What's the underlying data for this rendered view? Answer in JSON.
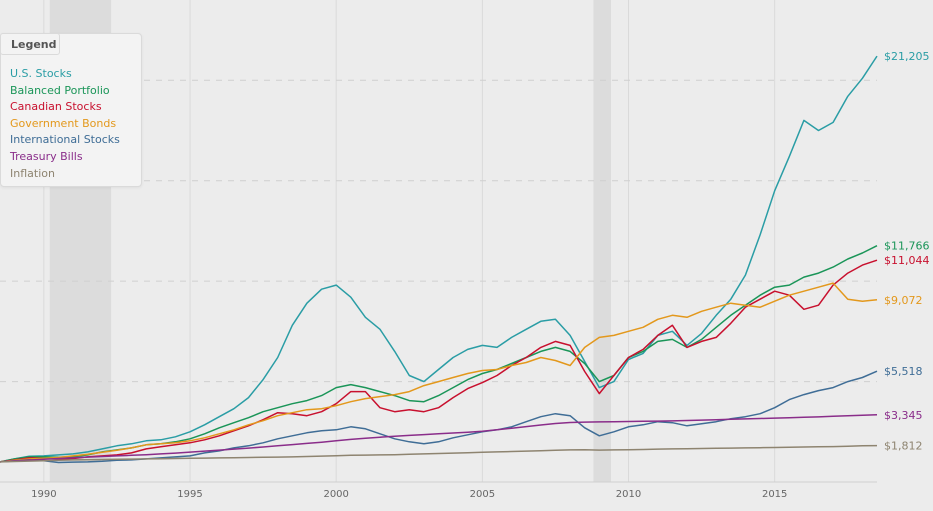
{
  "chart_data": {
    "type": "line",
    "legend": {
      "title": "Legend",
      "placement": "top-left"
    },
    "x": [
      1988.5,
      1989,
      1989.5,
      1990,
      1990.5,
      1991,
      1991.5,
      1992,
      1992.5,
      1993,
      1993.5,
      1994,
      1994.5,
      1995,
      1995.5,
      1996,
      1996.5,
      1997,
      1997.5,
      1998,
      1998.5,
      1999,
      1999.5,
      2000,
      2000.5,
      2001,
      2001.5,
      2002,
      2002.5,
      2003,
      2003.5,
      2004,
      2004.5,
      2005,
      2005.5,
      2006,
      2006.5,
      2007,
      2007.5,
      2008,
      2008.5,
      2009,
      2009.5,
      2010,
      2010.5,
      2011,
      2011.5,
      2012,
      2012.5,
      2013,
      2013.5,
      2014,
      2014.5,
      2015,
      2015.5,
      2016,
      2016.5,
      2017,
      2017.5,
      2018,
      2018.5
    ],
    "xlim": [
      1988.5,
      2018.5
    ],
    "ylim": [
      0,
      23000
    ],
    "grid": true,
    "x_ticks": [
      "1990",
      "1995",
      "2000",
      "2005",
      "2010",
      "2015"
    ],
    "recession_shading": [
      [
        1990.2,
        1992.3
      ],
      [
        2008.8,
        2009.4
      ]
    ],
    "series": [
      {
        "name": "U.S. Stocks",
        "color": "#2a9da5",
        "end_label": "$21,205",
        "values": [
          1000,
          1150,
          1280,
          1300,
          1350,
          1400,
          1500,
          1650,
          1800,
          1900,
          2050,
          2100,
          2250,
          2500,
          2850,
          3250,
          3650,
          4200,
          5100,
          6200,
          7800,
          8900,
          9600,
          9800,
          9200,
          8200,
          7600,
          6500,
          5300,
          5000,
          5600,
          6200,
          6600,
          6800,
          6700,
          7200,
          7600,
          8000,
          8100,
          7300,
          6000,
          4700,
          5000,
          6100,
          6400,
          7300,
          7500,
          6800,
          7400,
          8300,
          9100,
          10300,
          12300,
          14500,
          16200,
          18000,
          17500,
          17900,
          19200,
          20100,
          21205
        ]
      },
      {
        "name": "Balanced Portfolio",
        "color": "#1a9558",
        "end_label": "$11,766",
        "values": [
          1000,
          1150,
          1250,
          1250,
          1230,
          1260,
          1350,
          1500,
          1600,
          1700,
          1850,
          1900,
          2000,
          2150,
          2400,
          2700,
          2950,
          3200,
          3500,
          3700,
          3900,
          4050,
          4300,
          4700,
          4850,
          4700,
          4500,
          4300,
          4050,
          4000,
          4300,
          4700,
          5100,
          5400,
          5600,
          5900,
          6200,
          6500,
          6700,
          6500,
          5900,
          5000,
          5300,
          6200,
          6500,
          7000,
          7100,
          6700,
          7100,
          7700,
          8300,
          8800,
          9300,
          9700,
          9800,
          10200,
          10400,
          10700,
          11100,
          11400,
          11766
        ]
      },
      {
        "name": "Canadian Stocks",
        "color": "#c8102e",
        "end_label": "$11,044",
        "values": [
          1000,
          1100,
          1200,
          1180,
          1130,
          1170,
          1250,
          1300,
          1350,
          1450,
          1650,
          1750,
          1850,
          1950,
          2100,
          2300,
          2550,
          2800,
          3100,
          3450,
          3400,
          3300,
          3500,
          3900,
          4500,
          4500,
          3700,
          3500,
          3600,
          3500,
          3700,
          4200,
          4650,
          4950,
          5300,
          5800,
          6200,
          6700,
          7000,
          6800,
          5500,
          4400,
          5300,
          6200,
          6600,
          7300,
          7800,
          6700,
          7000,
          7200,
          7900,
          8700,
          9100,
          9500,
          9300,
          8600,
          8800,
          9800,
          10400,
          10800,
          11044
        ]
      },
      {
        "name": "Government Bonds",
        "color": "#e3981c",
        "end_label": "$9,072",
        "values": [
          1000,
          1080,
          1150,
          1180,
          1220,
          1300,
          1380,
          1480,
          1580,
          1700,
          1850,
          1900,
          1950,
          2050,
          2200,
          2400,
          2600,
          2850,
          3050,
          3300,
          3450,
          3600,
          3650,
          3800,
          4000,
          4150,
          4250,
          4350,
          4500,
          4800,
          5000,
          5200,
          5400,
          5550,
          5600,
          5800,
          5950,
          6200,
          6050,
          5800,
          6700,
          7200,
          7300,
          7500,
          7700,
          8100,
          8300,
          8200,
          8500,
          8700,
          8900,
          8800,
          8700,
          9000,
          9300,
          9500,
          9700,
          9900,
          9100,
          9000,
          9072
        ]
      },
      {
        "name": "International Stocks",
        "color": "#3f6d96",
        "end_label": "$5,518",
        "values": [
          1000,
          1050,
          1100,
          1060,
          970,
          990,
          1000,
          1030,
          1080,
          1100,
          1150,
          1200,
          1250,
          1300,
          1450,
          1550,
          1700,
          1800,
          1950,
          2150,
          2300,
          2450,
          2550,
          2600,
          2750,
          2650,
          2400,
          2150,
          2000,
          1900,
          2000,
          2200,
          2350,
          2500,
          2600,
          2750,
          3000,
          3250,
          3400,
          3300,
          2700,
          2300,
          2500,
          2750,
          2850,
          3000,
          2950,
          2800,
          2900,
          3000,
          3150,
          3250,
          3400,
          3700,
          4100,
          4350,
          4550,
          4700,
          5000,
          5200,
          5518
        ]
      },
      {
        "name": "Treasury Bills",
        "color": "#8a2d8a",
        "end_label": "$3,345",
        "values": [
          1000,
          1050,
          1090,
          1130,
          1170,
          1210,
          1240,
          1270,
          1300,
          1330,
          1360,
          1400,
          1440,
          1490,
          1540,
          1590,
          1640,
          1690,
          1740,
          1800,
          1860,
          1920,
          1980,
          2050,
          2120,
          2180,
          2230,
          2280,
          2320,
          2360,
          2400,
          2440,
          2480,
          2530,
          2600,
          2680,
          2760,
          2840,
          2910,
          2960,
          2980,
          2990,
          3000,
          3010,
          3020,
          3030,
          3040,
          3060,
          3080,
          3100,
          3120,
          3140,
          3160,
          3180,
          3200,
          3220,
          3240,
          3270,
          3300,
          3320,
          3345
        ]
      },
      {
        "name": "Inflation",
        "color": "#8e8470",
        "end_label": "$1,812",
        "values": [
          1000,
          1020,
          1040,
          1060,
          1080,
          1100,
          1110,
          1120,
          1130,
          1140,
          1150,
          1160,
          1170,
          1180,
          1190,
          1200,
          1210,
          1220,
          1230,
          1240,
          1250,
          1270,
          1290,
          1310,
          1330,
          1340,
          1350,
          1360,
          1380,
          1400,
          1420,
          1440,
          1460,
          1480,
          1500,
          1520,
          1540,
          1560,
          1580,
          1600,
          1610,
          1590,
          1600,
          1610,
          1620,
          1640,
          1650,
          1660,
          1670,
          1680,
          1690,
          1700,
          1710,
          1720,
          1730,
          1740,
          1750,
          1760,
          1780,
          1800,
          1812
        ]
      }
    ]
  }
}
